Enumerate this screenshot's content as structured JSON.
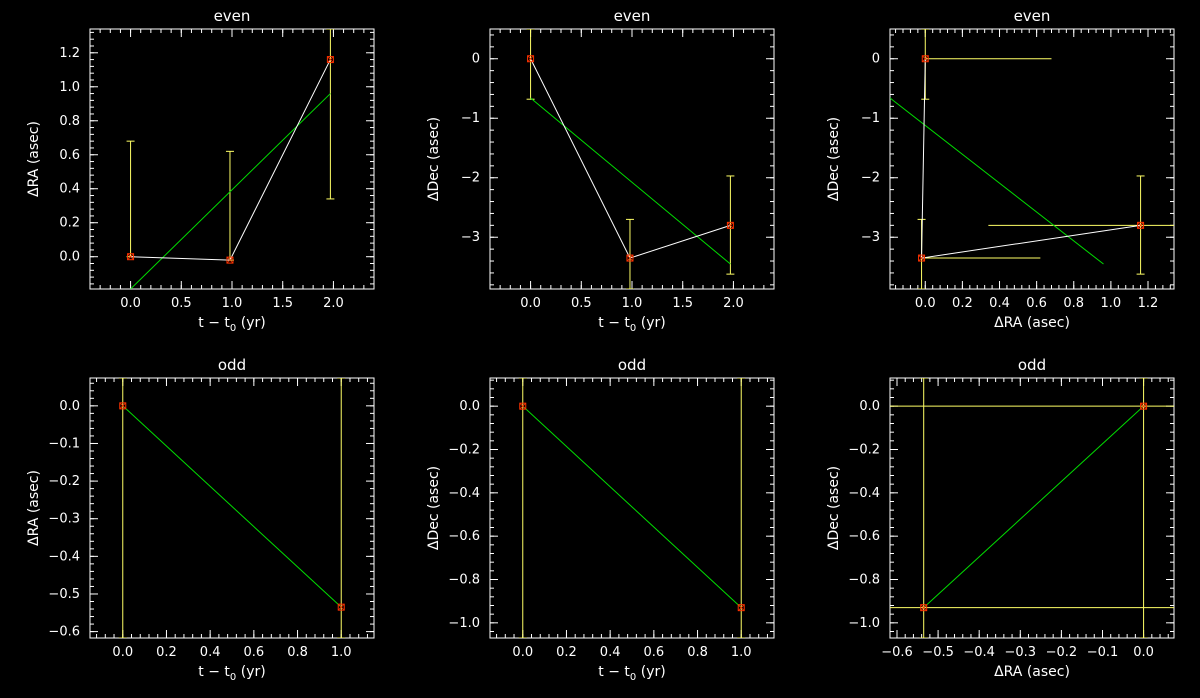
{
  "colors": {
    "background": "#000000",
    "axes": "#ffffff",
    "data_line": "#ffffff",
    "fit_line": "#00dd00",
    "error_bar": "#ffff66",
    "marker": "#ff3300"
  },
  "chart_data": [
    {
      "type": "scatter",
      "title": "even",
      "xlabel": "t − t",
      "xlabel_sub": "0",
      "xlabel_tail": " (yr)",
      "ylabel": "ΔRA (asec)",
      "xlim": [
        -0.4,
        2.4
      ],
      "ylim": [
        -0.19,
        1.34
      ],
      "xticks": [
        0.0,
        0.5,
        1.0,
        1.5,
        2.0
      ],
      "xtick_labels": [
        "0.0",
        "0.5",
        "1.0",
        "1.5",
        "2.0"
      ],
      "yticks": [
        0.0,
        0.2,
        0.4,
        0.6,
        0.8,
        1.0,
        1.2
      ],
      "ytick_labels": [
        "0.0",
        "0.2",
        "0.4",
        "0.6",
        "0.8",
        "1.0",
        "1.2"
      ],
      "x": [
        0.0,
        0.98,
        1.97
      ],
      "y": [
        0.0,
        -0.02,
        1.16
      ],
      "yerr_low": [
        0.0,
        -0.02,
        0.34
      ],
      "yerr_high": [
        0.68,
        0.62,
        1.34
      ],
      "fit": {
        "x": [
          0.0,
          1.97
        ],
        "y": [
          -0.19,
          0.96
        ]
      }
    },
    {
      "type": "scatter",
      "title": "even",
      "xlabel": "t − t",
      "xlabel_sub": "0",
      "xlabel_tail": " (yr)",
      "ylabel": "ΔDec (asec)",
      "xlim": [
        -0.4,
        2.4
      ],
      "ylim": [
        -3.87,
        0.5
      ],
      "xticks": [
        0.0,
        0.5,
        1.0,
        1.5,
        2.0
      ],
      "xtick_labels": [
        "0.0",
        "0.5",
        "1.0",
        "1.5",
        "2.0"
      ],
      "yticks": [
        -3,
        -2,
        -1,
        0
      ],
      "ytick_labels": [
        "−3",
        "−2",
        "−1",
        "0"
      ],
      "x": [
        0.0,
        0.98,
        1.97
      ],
      "y": [
        0.0,
        -3.35,
        -2.8
      ],
      "yerr_low": [
        -0.68,
        -3.87,
        -3.62
      ],
      "yerr_high": [
        0.5,
        -2.7,
        -1.97
      ],
      "fit": {
        "x": [
          0.0,
          1.97
        ],
        "y": [
          -0.66,
          -3.45
        ]
      }
    },
    {
      "type": "scatter",
      "title": "even",
      "xlabel": "ΔRA (asec)",
      "ylabel": "ΔDec (asec)",
      "xlim": [
        -0.19,
        1.34
      ],
      "ylim": [
        -3.87,
        0.5
      ],
      "xticks": [
        0.0,
        0.2,
        0.4,
        0.6,
        0.8,
        1.0,
        1.2
      ],
      "xtick_labels": [
        "0.0",
        "0.2",
        "0.4",
        "0.6",
        "0.8",
        "1.0",
        "1.2"
      ],
      "yticks": [
        -3,
        -2,
        -1,
        0
      ],
      "ytick_labels": [
        "−3",
        "−2",
        "−1",
        "0"
      ],
      "x": [
        0.0,
        -0.02,
        1.16
      ],
      "y": [
        0.0,
        -3.35,
        -2.8
      ],
      "yerr_low": [
        -0.68,
        -3.87,
        -3.62
      ],
      "yerr_high": [
        0.5,
        -2.7,
        -1.97
      ],
      "xerr_low": [
        0.0,
        -0.02,
        0.34
      ],
      "xerr_high": [
        0.68,
        0.62,
        1.34
      ],
      "fit": {
        "x": [
          -0.19,
          0.96
        ],
        "y": [
          -0.66,
          -3.45
        ]
      }
    },
    {
      "type": "scatter",
      "title": "odd",
      "xlabel": "t − t",
      "xlabel_sub": "0",
      "xlabel_tail": " (yr)",
      "ylabel": "ΔRA (asec)",
      "xlim": [
        -0.15,
        1.15
      ],
      "ylim": [
        -0.617,
        0.074
      ],
      "xticks": [
        0.0,
        0.2,
        0.4,
        0.6,
        0.8,
        1.0
      ],
      "xtick_labels": [
        "0.0",
        "0.2",
        "0.4",
        "0.6",
        "0.8",
        "1.0"
      ],
      "yticks": [
        0.0,
        -0.1,
        -0.2,
        -0.3,
        -0.4,
        -0.5,
        -0.6
      ],
      "ytick_labels": [
        "0.0",
        "−0.1",
        "−0.2",
        "−0.3",
        "−0.4",
        "−0.5",
        "−0.6"
      ],
      "x": [
        0.0,
        1.0
      ],
      "y": [
        0.0,
        -0.535
      ],
      "yerr_low": [
        -0.617,
        -0.617
      ],
      "yerr_high": [
        0.074,
        0.074
      ],
      "fit": {
        "x": [
          0.0,
          1.0
        ],
        "y": [
          0.0,
          -0.535
        ]
      }
    },
    {
      "type": "scatter",
      "title": "odd",
      "xlabel": "t − t",
      "xlabel_sub": "0",
      "xlabel_tail": " (yr)",
      "ylabel": "ΔDec (asec)",
      "xlim": [
        -0.15,
        1.15
      ],
      "ylim": [
        -1.07,
        0.13
      ],
      "xticks": [
        0.0,
        0.2,
        0.4,
        0.6,
        0.8,
        1.0
      ],
      "xtick_labels": [
        "0.0",
        "0.2",
        "0.4",
        "0.6",
        "0.8",
        "1.0"
      ],
      "yticks": [
        0.0,
        -0.2,
        -0.4,
        -0.6,
        -0.8,
        -1.0
      ],
      "ytick_labels": [
        "0.0",
        "−0.2",
        "−0.4",
        "−0.6",
        "−0.8",
        "−1.0"
      ],
      "x": [
        0.0,
        1.0
      ],
      "y": [
        0.0,
        -0.93
      ],
      "yerr_low": [
        -1.07,
        -1.07
      ],
      "yerr_high": [
        0.13,
        0.13
      ],
      "fit": {
        "x": [
          0.0,
          1.0
        ],
        "y": [
          0.0,
          -0.93
        ]
      }
    },
    {
      "type": "scatter",
      "title": "odd",
      "xlabel": "ΔRA (asec)",
      "ylabel": "ΔDec (asec)",
      "xlim": [
        -0.617,
        0.074
      ],
      "ylim": [
        -1.07,
        0.13
      ],
      "xticks": [
        -0.6,
        -0.5,
        -0.4,
        -0.3,
        -0.2,
        -0.1,
        0.0
      ],
      "xtick_labels": [
        "−0.6",
        "−0.5",
        "−0.4",
        "−0.3",
        "−0.2",
        "−0.1",
        "0.0"
      ],
      "yticks": [
        0.0,
        -0.2,
        -0.4,
        -0.6,
        -0.8,
        -1.0
      ],
      "ytick_labels": [
        "0.0",
        "−0.2",
        "−0.4",
        "−0.6",
        "−0.8",
        "−1.0"
      ],
      "x": [
        0.0,
        -0.535
      ],
      "y": [
        0.0,
        -0.93
      ],
      "yerr_low": [
        -1.07,
        -1.07
      ],
      "yerr_high": [
        0.13,
        0.13
      ],
      "xerr_low": [
        -0.617,
        -0.617
      ],
      "xerr_high": [
        0.074,
        0.074
      ],
      "fit": {
        "x": [
          0.0,
          -0.535
        ],
        "y": [
          0.0,
          -0.93
        ]
      }
    }
  ]
}
